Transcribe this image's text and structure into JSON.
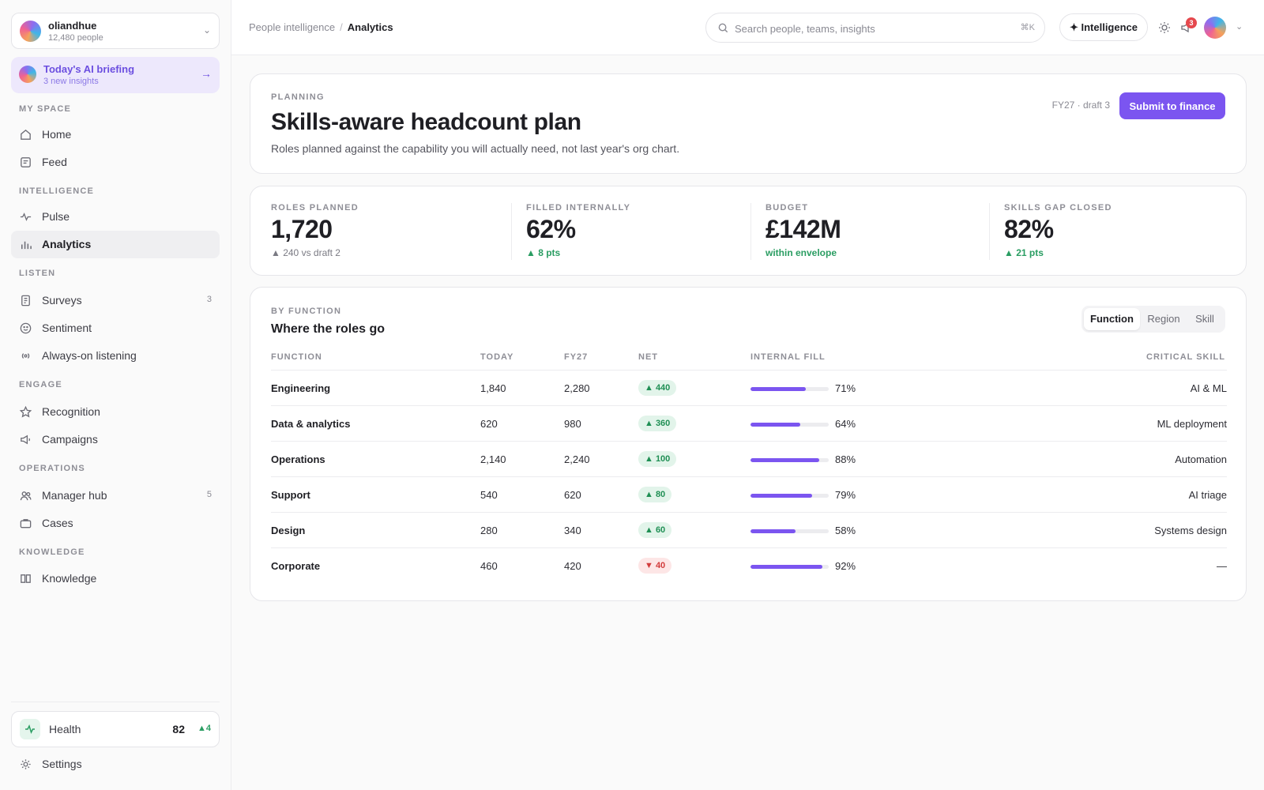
{
  "org": {
    "name": "oliandhue",
    "people": "12,480 people"
  },
  "briefing": {
    "title": "Today's AI briefing",
    "subtitle": "3 new insights"
  },
  "sidebar": {
    "sections": [
      {
        "label": "MY SPACE"
      },
      {
        "label": "INTELLIGENCE"
      },
      {
        "label": "LISTEN"
      },
      {
        "label": "ENGAGE"
      },
      {
        "label": "OPERATIONS"
      },
      {
        "label": "KNOWLEDGE"
      }
    ],
    "items": [
      {
        "label": "Home",
        "icon": "home-icon"
      },
      {
        "label": "Feed",
        "icon": "feed-icon"
      },
      {
        "label": "Pulse",
        "icon": "pulse-icon"
      },
      {
        "label": "Analytics",
        "icon": "analytics-icon",
        "active": true
      },
      {
        "label": "Surveys",
        "icon": "survey-icon",
        "count": "3"
      },
      {
        "label": "Sentiment",
        "icon": "smile-icon"
      },
      {
        "label": "Always-on listening",
        "icon": "broadcast-icon"
      },
      {
        "label": "Recognition",
        "icon": "star-icon"
      },
      {
        "label": "Campaigns",
        "icon": "megaphone-icon"
      },
      {
        "label": "Manager hub",
        "icon": "people-icon",
        "count": "5"
      },
      {
        "label": "Cases",
        "icon": "briefcase-icon"
      },
      {
        "label": "Knowledge",
        "icon": "book-icon"
      }
    ],
    "health": {
      "label": "Health",
      "value": "82",
      "delta": "▲4"
    },
    "settings": {
      "label": "Settings"
    }
  },
  "topbar": {
    "breadcrumb": {
      "parent": "People intelligence",
      "separator": "/",
      "current": "Analytics"
    },
    "search": {
      "placeholder": "Search people, teams, insights",
      "shortcut": "⌘K"
    },
    "intelligence_label": "✦ Intelligence",
    "notifications_count": "3"
  },
  "hero": {
    "eyebrow": "PLANNING",
    "title": "Skills-aware headcount plan",
    "description": "Roles planned against the capability you will actually need, not last year's org chart.",
    "draft": "FY27 · draft 3",
    "submit_label": "Submit to finance"
  },
  "kpis": [
    {
      "label": "ROLES PLANNED",
      "value": "1,720",
      "delta": "▲ 240 vs draft 2",
      "tone": "neutral"
    },
    {
      "label": "FILLED INTERNALLY",
      "value": "62%",
      "delta": "▲ 8 pts",
      "tone": "positive"
    },
    {
      "label": "BUDGET",
      "value": "£142M",
      "delta": "within envelope",
      "tone": "positive"
    },
    {
      "label": "SKILLS GAP CLOSED",
      "value": "82%",
      "delta": "▲ 21 pts",
      "tone": "positive"
    }
  ],
  "table": {
    "eyebrow": "BY FUNCTION",
    "title": "Where the roles go",
    "segments": [
      "Function",
      "Region",
      "Skill"
    ],
    "selected_segment": "Function",
    "columns": [
      "FUNCTION",
      "TODAY",
      "FY27",
      "NET",
      "INTERNAL FILL",
      "CRITICAL SKILL"
    ],
    "rows": [
      {
        "function": "Engineering",
        "today": "1,840",
        "fy27": "2,280",
        "net": "▲ 440",
        "net_dir": "up",
        "fill": 71,
        "fill_label": "71%",
        "skill": "AI & ML"
      },
      {
        "function": "Data & analytics",
        "today": "620",
        "fy27": "980",
        "net": "▲ 360",
        "net_dir": "up",
        "fill": 64,
        "fill_label": "64%",
        "skill": "ML deployment"
      },
      {
        "function": "Operations",
        "today": "2,140",
        "fy27": "2,240",
        "net": "▲ 100",
        "net_dir": "up",
        "fill": 88,
        "fill_label": "88%",
        "skill": "Automation"
      },
      {
        "function": "Support",
        "today": "540",
        "fy27": "620",
        "net": "▲ 80",
        "net_dir": "up",
        "fill": 79,
        "fill_label": "79%",
        "skill": "AI triage"
      },
      {
        "function": "Design",
        "today": "280",
        "fy27": "340",
        "net": "▲ 60",
        "net_dir": "up",
        "fill": 58,
        "fill_label": "58%",
        "skill": "Systems design"
      },
      {
        "function": "Corporate",
        "today": "460",
        "fy27": "420",
        "net": "▼ 40",
        "net_dir": "down",
        "fill": 92,
        "fill_label": "92%",
        "skill": "—"
      }
    ]
  },
  "colors": {
    "accent": "#7b55f0",
    "positive": "#2a9d62",
    "negative": "#d23b3b"
  }
}
